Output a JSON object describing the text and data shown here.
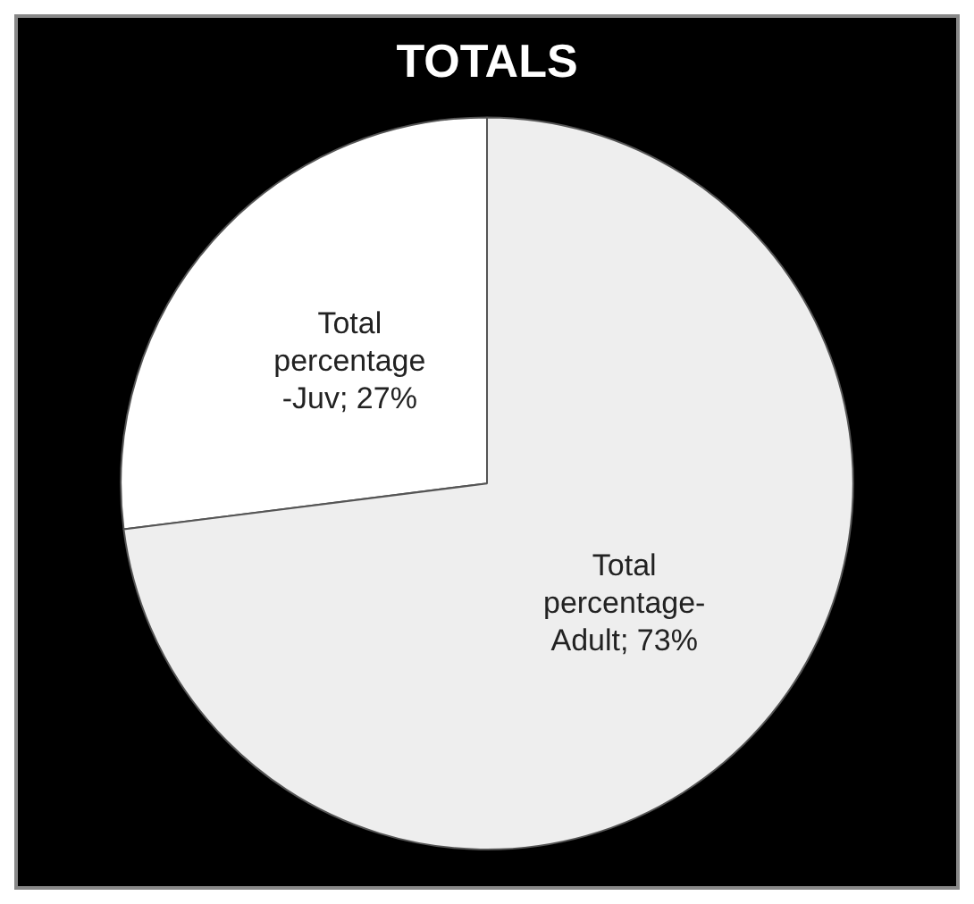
{
  "chart_data": {
    "type": "pie",
    "title": "TOTALS",
    "categories": [
      "Total percentage -Juv",
      "Total percentage-Adult"
    ],
    "values": [
      27,
      73
    ],
    "value_labels": [
      "27%",
      "73%"
    ],
    "colors": [
      "#ffffff",
      "#eeeeee"
    ],
    "legend": false
  }
}
